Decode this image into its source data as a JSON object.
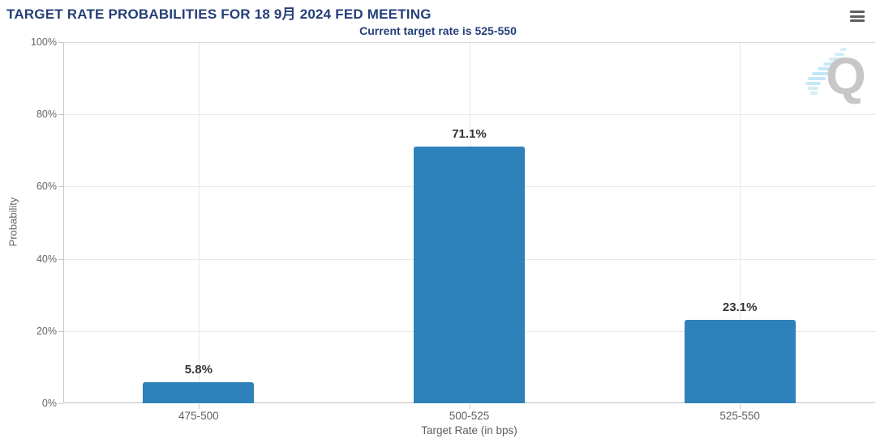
{
  "chart_data": {
    "type": "bar",
    "title": "TARGET RATE PROBABILITIES FOR 18 9月 2024 FED MEETING",
    "subtitle": "Current target rate is 525-550",
    "categories": [
      "475-500",
      "500-525",
      "525-550"
    ],
    "values": [
      5.8,
      71.1,
      23.1
    ],
    "value_labels": [
      "5.8%",
      "71.1%",
      "23.1%"
    ],
    "xlabel": "Target Rate (in bps)",
    "ylabel": "Probability",
    "ylim": [
      0,
      100
    ],
    "yticks": [
      0,
      20,
      40,
      60,
      80,
      100
    ],
    "ytick_labels": [
      "0%",
      "20%",
      "40%",
      "60%",
      "80%",
      "100%"
    ],
    "grid": true,
    "legend_position": "none",
    "bar_color": "#2e81ba"
  },
  "watermark": {
    "letter": "Q"
  },
  "icons": {
    "menu": "hamburger-icon"
  },
  "colors": {
    "title_navy": "#253f77",
    "bar_blue": "#2e81ba",
    "gridline": "#e7e7e7",
    "axis_text": "#5f5f5f",
    "watermark_gray": "#c7c7c7",
    "watermark_dash_blue": "#a9dcf2"
  }
}
